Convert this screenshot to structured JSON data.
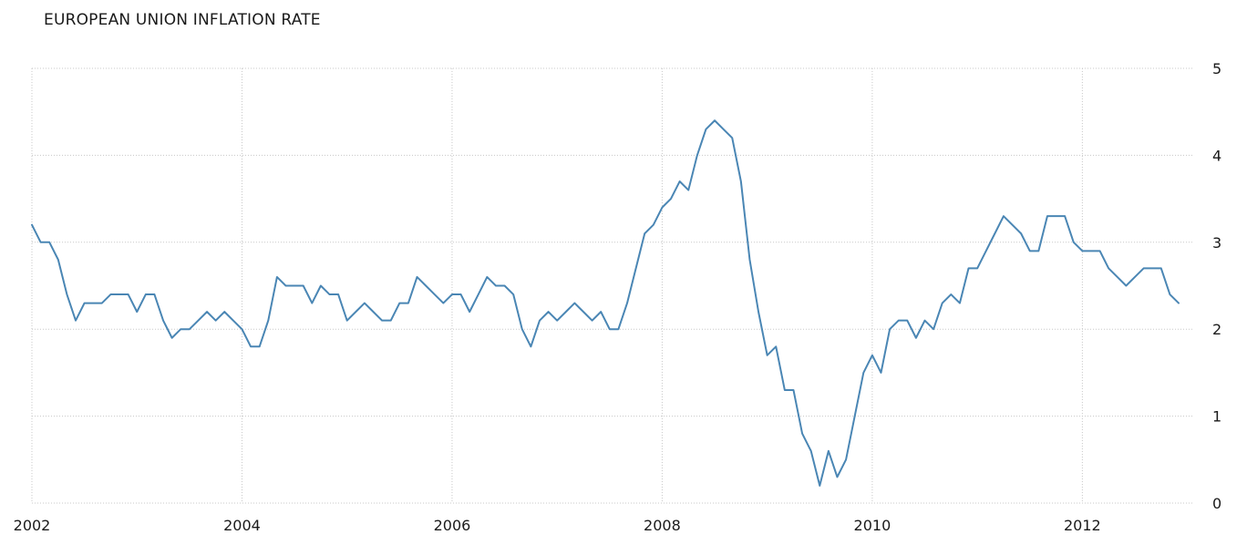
{
  "title": "EUROPEAN UNION INFLATION RATE",
  "colors": {
    "line": "#4a86b4",
    "grid": "#c8c8c8",
    "text": "#1a1a1a"
  },
  "chart_data": {
    "type": "line",
    "title": "EUROPEAN UNION INFLATION RATE",
    "xlabel": "",
    "ylabel": "",
    "grid": true,
    "y_axis_side": "right",
    "ylim": [
      0,
      5
    ],
    "y_ticks": [
      0,
      1,
      2,
      3,
      4,
      5
    ],
    "x_ticks": [
      "2002",
      "2004",
      "2006",
      "2008",
      "2010",
      "2012"
    ],
    "xlim": [
      "2002-01",
      "2012-12"
    ],
    "series": [
      {
        "x": [
          "2002-01",
          "2002-02",
          "2002-03",
          "2002-04",
          "2002-05",
          "2002-06",
          "2002-07",
          "2002-08",
          "2002-09",
          "2002-10",
          "2002-11",
          "2002-12",
          "2003-01",
          "2003-02",
          "2003-03",
          "2003-04",
          "2003-05",
          "2003-06",
          "2003-07",
          "2003-08",
          "2003-09",
          "2003-10",
          "2003-11",
          "2003-12",
          "2004-01",
          "2004-02",
          "2004-03",
          "2004-04",
          "2004-05",
          "2004-06",
          "2004-07",
          "2004-08",
          "2004-09",
          "2004-10",
          "2004-11",
          "2004-12",
          "2005-01",
          "2005-02",
          "2005-03",
          "2005-04",
          "2005-05",
          "2005-06",
          "2005-07",
          "2005-08",
          "2005-09",
          "2005-10",
          "2005-11",
          "2005-12",
          "2006-01",
          "2006-02",
          "2006-03",
          "2006-04",
          "2006-05",
          "2006-06",
          "2006-07",
          "2006-08",
          "2006-09",
          "2006-10",
          "2006-11",
          "2006-12",
          "2007-01",
          "2007-02",
          "2007-03",
          "2007-04",
          "2007-05",
          "2007-06",
          "2007-07",
          "2007-08",
          "2007-09",
          "2007-10",
          "2007-11",
          "2007-12",
          "2008-01",
          "2008-02",
          "2008-03",
          "2008-04",
          "2008-05",
          "2008-06",
          "2008-07",
          "2008-08",
          "2008-09",
          "2008-10",
          "2008-11",
          "2008-12",
          "2009-01",
          "2009-02",
          "2009-03",
          "2009-04",
          "2009-05",
          "2009-06",
          "2009-07",
          "2009-08",
          "2009-09",
          "2009-10",
          "2009-11",
          "2009-12",
          "2010-01",
          "2010-02",
          "2010-03",
          "2010-04",
          "2010-05",
          "2010-06",
          "2010-07",
          "2010-08",
          "2010-09",
          "2010-10",
          "2010-11",
          "2010-12",
          "2011-01",
          "2011-02",
          "2011-03",
          "2011-04",
          "2011-05",
          "2011-06",
          "2011-07",
          "2011-08",
          "2011-09",
          "2011-10",
          "2011-11",
          "2011-12",
          "2012-01",
          "2012-02",
          "2012-03",
          "2012-04",
          "2012-05",
          "2012-06",
          "2012-07",
          "2012-08",
          "2012-09",
          "2012-10",
          "2012-11",
          "2012-12"
        ],
        "values": [
          3.2,
          3.0,
          3.0,
          2.8,
          2.4,
          2.1,
          2.3,
          2.3,
          2.3,
          2.4,
          2.4,
          2.4,
          2.2,
          2.4,
          2.4,
          2.1,
          1.9,
          2.0,
          2.0,
          2.1,
          2.2,
          2.1,
          2.2,
          2.1,
          2.0,
          1.8,
          1.8,
          2.1,
          2.6,
          2.5,
          2.5,
          2.5,
          2.3,
          2.5,
          2.4,
          2.4,
          2.1,
          2.2,
          2.3,
          2.2,
          2.1,
          2.1,
          2.3,
          2.3,
          2.6,
          2.5,
          2.4,
          2.3,
          2.4,
          2.4,
          2.2,
          2.4,
          2.6,
          2.5,
          2.5,
          2.4,
          2.0,
          1.8,
          2.1,
          2.2,
          2.1,
          2.2,
          2.3,
          2.2,
          2.1,
          2.2,
          2.0,
          2.0,
          2.3,
          2.7,
          3.1,
          3.2,
          3.4,
          3.5,
          3.7,
          3.6,
          4.0,
          4.3,
          4.4,
          4.3,
          4.2,
          3.7,
          2.8,
          2.2,
          1.7,
          1.8,
          1.3,
          1.3,
          0.8,
          0.6,
          0.2,
          0.6,
          0.3,
          0.5,
          1.0,
          1.5,
          1.7,
          1.5,
          2.0,
          2.1,
          2.1,
          1.9,
          2.1,
          2.0,
          2.3,
          2.4,
          2.3,
          2.7,
          2.7,
          2.9,
          3.1,
          3.3,
          3.2,
          3.1,
          2.9,
          2.9,
          3.3,
          3.3,
          3.3,
          3.0,
          2.9,
          2.9,
          2.9,
          2.7,
          2.6,
          2.5,
          2.6,
          2.7,
          2.7,
          2.7,
          2.4,
          2.3
        ]
      }
    ]
  }
}
